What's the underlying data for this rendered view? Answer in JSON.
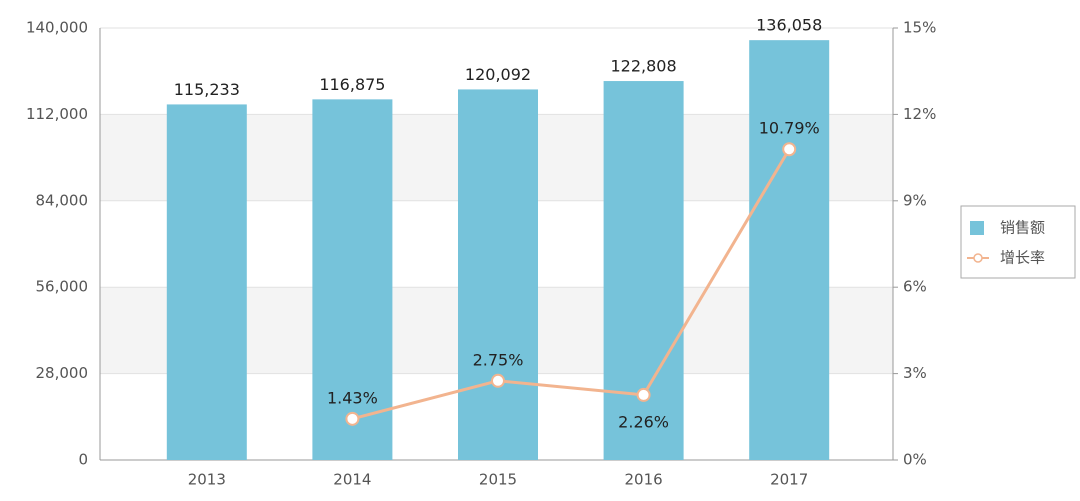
{
  "chart_data": {
    "type": "bar",
    "categories": [
      "2013",
      "2014",
      "2015",
      "2016",
      "2017"
    ],
    "series": [
      {
        "name": "销售额",
        "type": "bar",
        "color": "#76c3da",
        "values": [
          115233,
          116875,
          120092,
          122808,
          136058
        ],
        "value_labels": [
          "115,233",
          "116,875",
          "120,092",
          "122,808",
          "136,058"
        ]
      },
      {
        "name": "增长率",
        "type": "line",
        "axis": "y2",
        "color": "#f2b48f",
        "values": [
          null,
          1.43,
          2.75,
          2.26,
          10.79
        ],
        "value_labels": [
          null,
          "1.43%",
          "2.75%",
          "2.26%",
          "10.79%"
        ]
      }
    ],
    "ylim": [
      0,
      140000
    ],
    "yticks": [
      0,
      {
        "value": 28000,
        "label": "28,000"
      },
      {
        "value": 56000,
        "label": "56,000"
      },
      {
        "value": 84000,
        "label": "84,000"
      },
      {
        "value": 112000,
        "label": "112,000"
      },
      {
        "value": 140000,
        "label": "140,000"
      }
    ],
    "y2lim": [
      0,
      15
    ],
    "y2ticks": [
      {
        "value": 0,
        "label": "0%"
      },
      {
        "value": 3,
        "label": "3%"
      },
      {
        "value": 6,
        "label": "6%"
      },
      {
        "value": 9,
        "label": "9%"
      },
      {
        "value": 12,
        "label": "12%"
      },
      {
        "value": 15,
        "label": "15%"
      }
    ],
    "grid": true,
    "legend": "right"
  }
}
